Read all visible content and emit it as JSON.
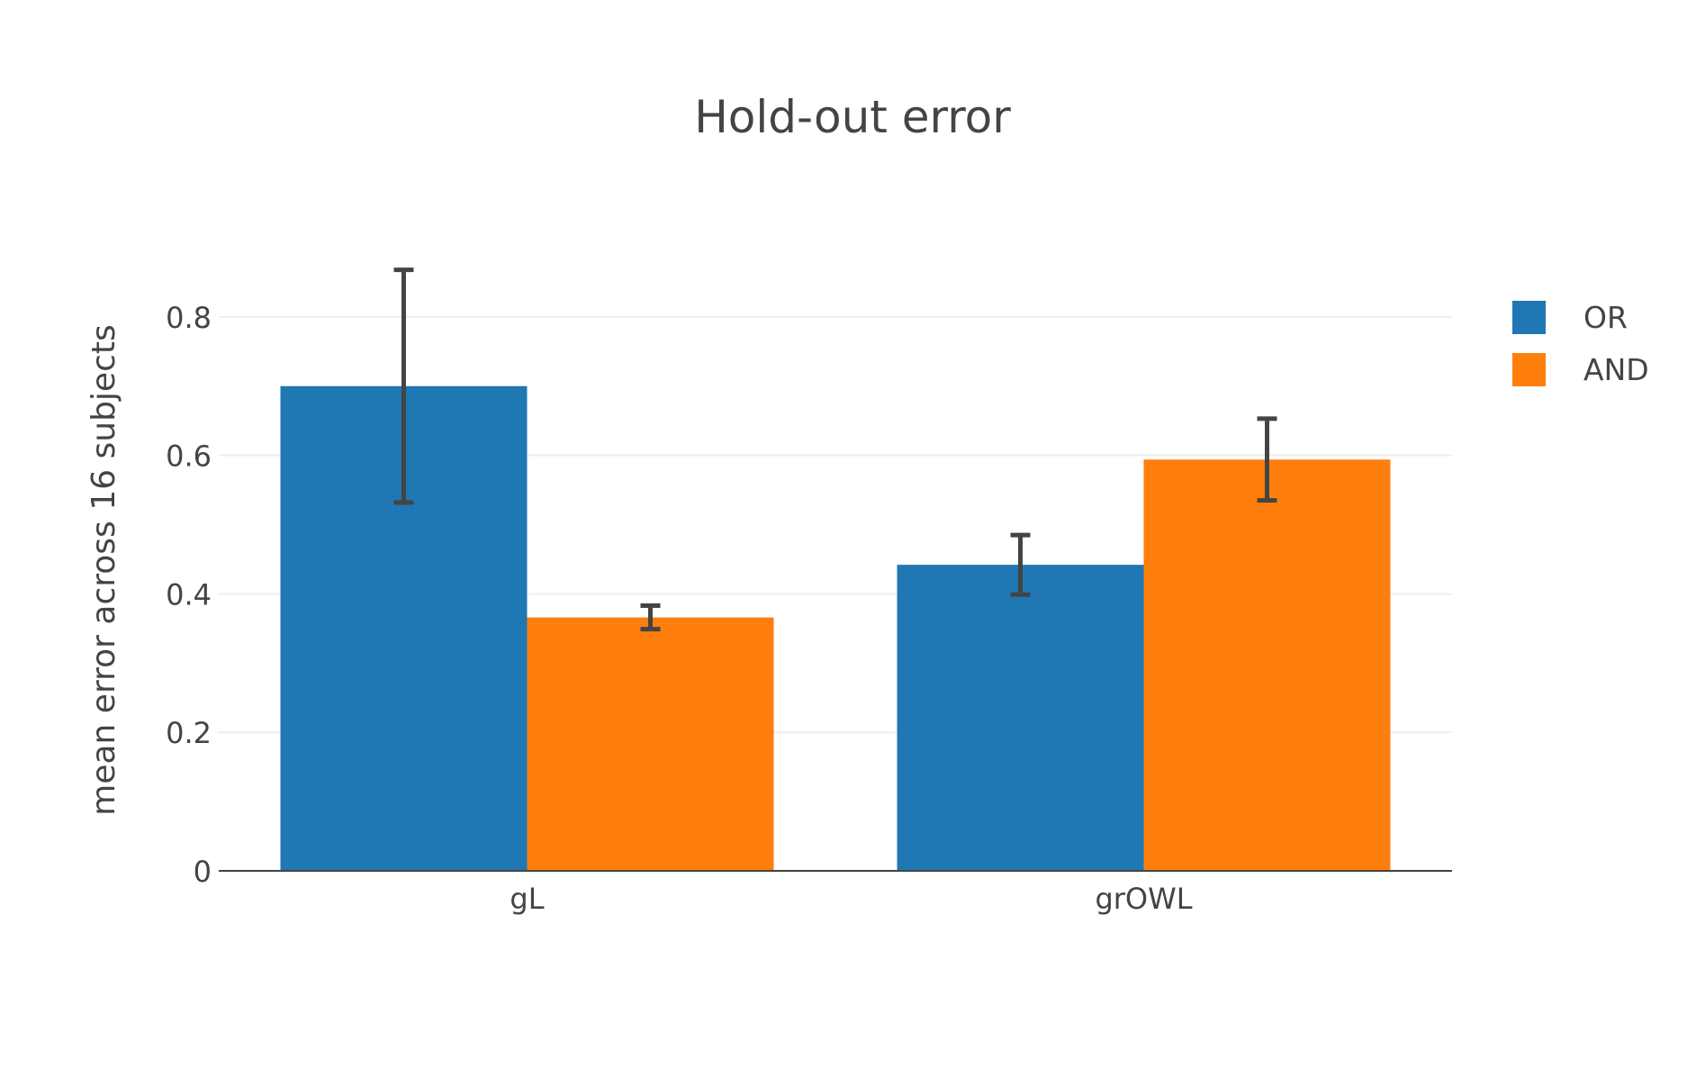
{
  "chart_data": {
    "type": "bar",
    "title": "Hold-out error",
    "xlabel": "",
    "ylabel": "mean error across 16 subjects",
    "categories": [
      "gL",
      "grOWL"
    ],
    "series": [
      {
        "name": "OR",
        "color": "#1f77b4",
        "values": [
          0.7,
          0.442
        ],
        "error_low": [
          0.532,
          0.399
        ],
        "error_high": [
          0.868,
          0.485
        ]
      },
      {
        "name": "AND",
        "color": "#ff7f0e",
        "values": [
          0.366,
          0.594
        ],
        "error_low": [
          0.349,
          0.535
        ],
        "error_high": [
          0.383,
          0.653
        ]
      }
    ],
    "ylim": [
      0,
      0.9
    ],
    "yticks": [
      0,
      0.2,
      0.4,
      0.6,
      0.8
    ],
    "ytick_labels": [
      "0",
      "0.2",
      "0.4",
      "0.6",
      "0.8"
    ],
    "grid": true,
    "legend_position": "top-right",
    "error_bar_color": "#444444"
  }
}
